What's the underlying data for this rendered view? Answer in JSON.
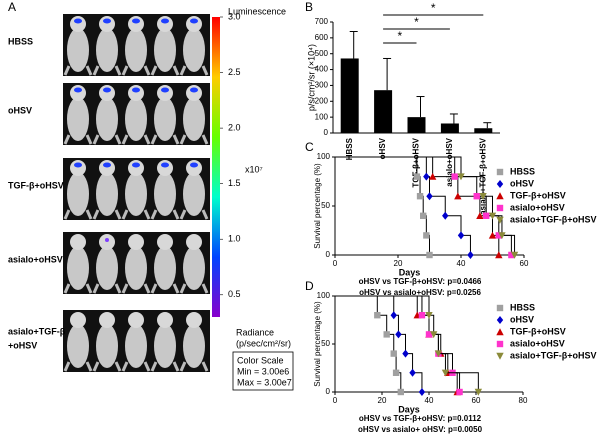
{
  "panel_a": {
    "label": "A",
    "rows": [
      "HBSS",
      "oHSV",
      "TGF-β+oHSV",
      "asialo+oHSV",
      [
        "asialo+TGF-β",
        "+oHSV"
      ]
    ],
    "colorbar": {
      "title": "Luminescence",
      "multiplier": "x10⁷",
      "clim": [
        0.3,
        3.0
      ],
      "ticks": [
        {
          "value": 3,
          "label": "3.0"
        },
        2.5,
        {
          "value": 2,
          "label": "2.0"
        },
        1.5,
        {
          "value": 1,
          "label": "1.0"
        },
        0.5
      ],
      "unit": [
        "Radiance",
        "(p/sec/cm²/sr)"
      ],
      "scale_box": [
        "Color Scale",
        "Min = 3.00e6",
        "Max = 3.00e7"
      ]
    }
  },
  "chart_data": [
    {
      "type": "bar",
      "panel": "B",
      "y_label": "p/s/cm²/sr (×10⁴)",
      "categories": [
        "HBSS",
        "oHSV",
        "TGF-β+oHSV",
        "asialo+oHSV",
        "asialo+TGF-β+oHSV"
      ],
      "values": [
        470,
        270,
        100,
        60,
        30
      ],
      "errors": [
        170,
        200,
        130,
        60,
        35
      ],
      "color": "#000000",
      "ylim": [
        0,
        700
      ],
      "yticks": [
        0,
        100,
        200,
        300,
        400,
        500,
        600,
        700
      ],
      "annotations": [
        "*",
        "*",
        "*"
      ]
    },
    {
      "type": "survival",
      "panel": "C",
      "x_label": "Days",
      "y_label": "Survival percentage (%)",
      "xlim": [
        0,
        60
      ],
      "xticks": [
        0,
        20,
        40,
        60
      ],
      "ylim": [
        0,
        100
      ],
      "yticks": [
        0,
        50,
        100
      ],
      "series": [
        {
          "name": "HBSS",
          "color": "#a0a0a0",
          "marker": "square",
          "x": [
            0,
            26,
            27,
            28,
            29,
            30
          ],
          "values": [
            100,
            80,
            60,
            40,
            20,
            0
          ]
        },
        {
          "name": "oHSV",
          "color": "#0000cc",
          "marker": "diamond",
          "x": [
            0,
            29,
            30,
            35,
            40,
            43
          ],
          "values": [
            100,
            80,
            60,
            40,
            20,
            0
          ]
        },
        {
          "name": "TGF-β+oHSV",
          "color": "#cc0000",
          "marker": "triangle",
          "x": [
            0,
            31,
            39,
            46,
            50,
            52
          ],
          "values": [
            100,
            80,
            60,
            40,
            20,
            0
          ]
        },
        {
          "name": "asialo+oHSV",
          "color": "#ff33cc",
          "marker": "square",
          "x": [
            0,
            38,
            45,
            48,
            52,
            56
          ],
          "values": [
            100,
            80,
            60,
            40,
            20,
            0
          ]
        },
        {
          "name": "asialo+TGF-β+oHSV",
          "color": "#8b8b3a",
          "marker": "triangle-down",
          "x": [
            0,
            40,
            47,
            50,
            53,
            57
          ],
          "values": [
            100,
            80,
            60,
            40,
            20,
            0
          ]
        }
      ],
      "stats": [
        "oHSV vs TGF-β+oHSV: p=0.0466",
        "oHSV vs  asialo+oHSV: p=0.0256"
      ]
    },
    {
      "type": "survival",
      "panel": "D",
      "x_label": "Days",
      "y_label": "Survival percentage (%)",
      "xlim": [
        0,
        80
      ],
      "xticks": [
        0,
        20,
        40,
        60,
        80
      ],
      "ylim": [
        0,
        100
      ],
      "yticks": [
        0,
        50,
        100
      ],
      "series": [
        {
          "name": "HBSS",
          "color": "#a0a0a0",
          "marker": "square",
          "x": [
            0,
            18,
            22,
            25,
            26,
            28
          ],
          "values": [
            100,
            80,
            60,
            40,
            20,
            0
          ]
        },
        {
          "name": "oHSV",
          "color": "#0000cc",
          "marker": "diamond",
          "x": [
            0,
            25,
            27,
            30,
            33,
            37
          ],
          "values": [
            100,
            80,
            60,
            40,
            20,
            0
          ]
        },
        {
          "name": "TGF-β+oHSV",
          "color": "#cc0000",
          "marker": "triangle",
          "x": [
            0,
            35,
            40,
            45,
            48,
            52
          ],
          "values": [
            100,
            80,
            60,
            40,
            20,
            0
          ]
        },
        {
          "name": "asialo+oHSV",
          "color": "#ff33cc",
          "marker": "square",
          "x": [
            0,
            37,
            40,
            44,
            50,
            53
          ],
          "values": [
            100,
            80,
            60,
            40,
            20,
            0
          ]
        },
        {
          "name": "asialo+TGF-β+oHSV",
          "color": "#8b8b3a",
          "marker": "triangle-down",
          "x": [
            0,
            40,
            42,
            44,
            47,
            61
          ],
          "values": [
            100,
            80,
            60,
            40,
            20,
            0
          ]
        }
      ],
      "stats": [
        "oHSV vs TGF-β+oHSV: p=0.0112",
        "oHSV vs asialo+  oHSV: p=0.0050"
      ]
    }
  ]
}
